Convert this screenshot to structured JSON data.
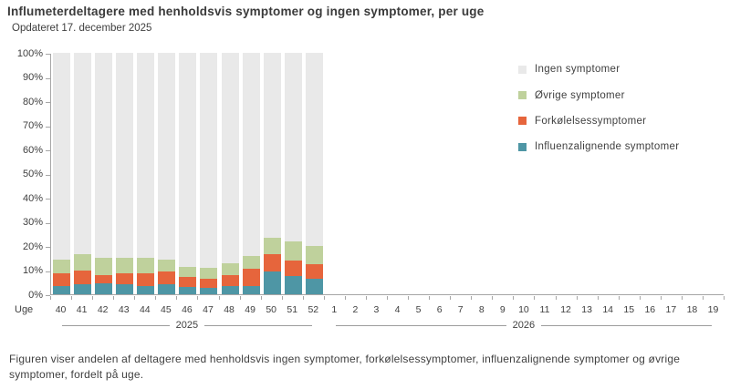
{
  "header": {
    "title": "Influmeterdeltagere med henholdsvis symptomer og ingen symptomer, per uge",
    "subtitle": "Opdateret 17. december 2025"
  },
  "legend": {
    "items": [
      {
        "label": "Ingen symptomer",
        "color": "#e9e9e9"
      },
      {
        "label": "Øvrige symptomer",
        "color": "#bfd19c"
      },
      {
        "label": "Forkølelsessymptomer",
        "color": "#e6653c"
      },
      {
        "label": "Influenzalignende symptomer",
        "color": "#4e96a5"
      }
    ]
  },
  "chart_data": {
    "type": "bar",
    "stacked": true,
    "stack_total": 100,
    "x_axis_label": "Uge",
    "categories": [
      "40",
      "41",
      "42",
      "43",
      "44",
      "45",
      "46",
      "47",
      "48",
      "49",
      "50",
      "51",
      "52",
      "1",
      "2",
      "3",
      "4",
      "5",
      "6",
      "7",
      "8",
      "9",
      "10",
      "11",
      "12",
      "13",
      "14",
      "15",
      "16",
      "17",
      "18",
      "19"
    ],
    "year_groups": [
      {
        "label": "2025",
        "span": 13
      },
      {
        "label": "2026",
        "span": 19
      }
    ],
    "y_ticks": [
      "0%",
      "10%",
      "20%",
      "30%",
      "40%",
      "50%",
      "60%",
      "70%",
      "80%",
      "90%",
      "100%"
    ],
    "ylim": [
      0,
      100
    ],
    "grid": false,
    "legend_position": "right",
    "series": [
      {
        "name": "Influenzalignende symptomer",
        "color": "#4e96a5",
        "values": [
          3.5,
          4,
          4.5,
          4,
          3.5,
          4,
          3,
          2.5,
          3.5,
          3.5,
          9.5,
          7.5,
          6.5
        ]
      },
      {
        "name": "Forkølelsessymptomer",
        "color": "#e6653c",
        "values": [
          5,
          6,
          3.5,
          4.5,
          5,
          5.5,
          4,
          4,
          4.5,
          7,
          7,
          6.5,
          6
        ]
      },
      {
        "name": "Øvrige symptomer",
        "color": "#bfd19c",
        "values": [
          6,
          6.5,
          7,
          6.5,
          6.5,
          5,
          4.5,
          4.5,
          5,
          5.5,
          7,
          8,
          7.5
        ]
      },
      {
        "name": "Ingen symptomer",
        "color": "#e9e9e9",
        "values": [
          85.5,
          83.5,
          85,
          85,
          85,
          85.5,
          88.5,
          89,
          87,
          84,
          76.5,
          78,
          80
        ]
      }
    ]
  },
  "footer": {
    "caption": "Figuren viser andelen af deltagere med henholdsvis ingen symptomer, forkølelsessymptomer, influenzalignende symptomer og øvrige symptomer, fordelt på uge."
  }
}
